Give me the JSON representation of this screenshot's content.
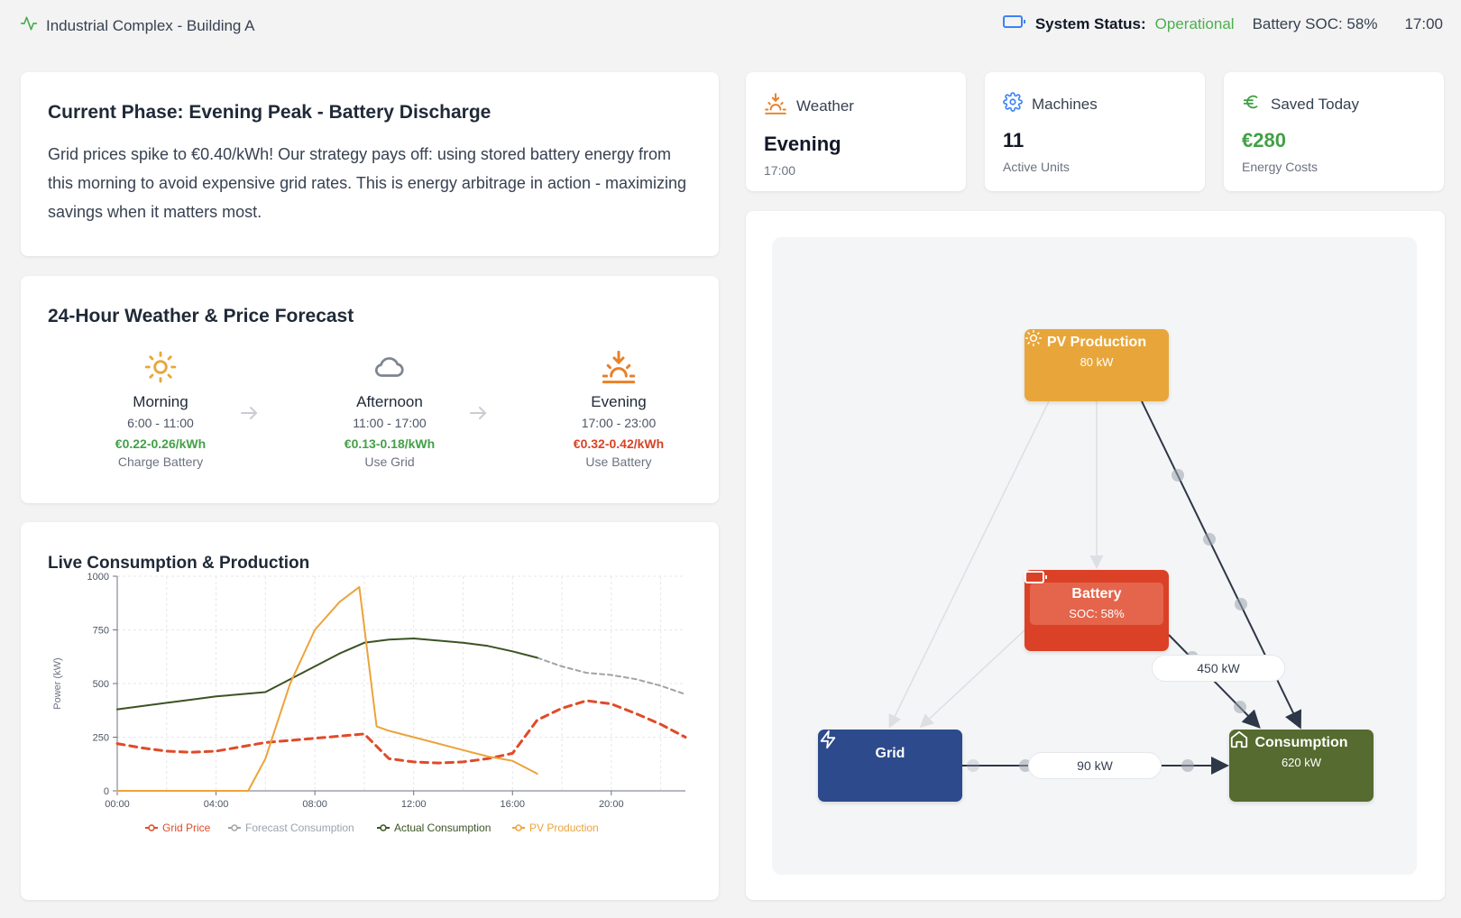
{
  "header": {
    "site_name": "Industrial Complex - Building A",
    "status_label": "System Status:",
    "status_value": "Operational",
    "battery_soc": "Battery SOC: 58%",
    "time": "17:00",
    "colors": {
      "status_ok": "#4caf50",
      "battery_icon": "#3b82f6",
      "activity_icon": "#4caf50"
    }
  },
  "phase": {
    "title": "Current Phase: Evening Peak - Battery Discharge",
    "description": "Grid prices spike to €0.40/kWh! Our strategy pays off: using stored battery energy from this morning to avoid expensive grid rates. This is energy arbitrage in action - maximizing savings when it matters most."
  },
  "forecast": {
    "title": "24-Hour Weather & Price Forecast",
    "periods": [
      {
        "icon": "sun-icon",
        "name": "Morning",
        "time": "6:00 - 11:00",
        "price": "€0.22-0.26/kWh",
        "price_color": "#43a047",
        "action": "Charge Battery"
      },
      {
        "icon": "cloud-icon",
        "name": "Afternoon",
        "time": "11:00 - 17:00",
        "price": "€0.13-0.18/kWh",
        "price_color": "#43a047",
        "action": "Use Grid"
      },
      {
        "icon": "sunset-icon",
        "name": "Evening",
        "time": "17:00 - 23:00",
        "price": "€0.32-0.42/kWh",
        "price_color": "#d84326",
        "action": "Use Battery"
      }
    ]
  },
  "stats": {
    "weather": {
      "label": "Weather",
      "value": "Evening",
      "sub": "17:00"
    },
    "machines": {
      "label": "Machines",
      "value": "11",
      "sub": "Active Units"
    },
    "saved": {
      "label": "Saved Today",
      "value": "€280",
      "sub": "Energy Costs",
      "value_color": "#43a047"
    }
  },
  "flow": {
    "pv": {
      "title": "PV Production",
      "value": "80 kW"
    },
    "battery": {
      "title": "Battery",
      "value": "SOC: 58%"
    },
    "grid": {
      "title": "Grid"
    },
    "consumption": {
      "title": "Consumption",
      "value": "620 kW"
    },
    "battery_to_consumption": "450 kW",
    "grid_to_consumption": "90 kW"
  },
  "chart_data": {
    "type": "line",
    "title": "Live Consumption & Production",
    "xlabel": "",
    "ylabel": "Power (kW)",
    "ylim": [
      0,
      1000
    ],
    "xlim": [
      0,
      23
    ],
    "x_ticks": [
      "00:00",
      "04:00",
      "08:00",
      "12:00",
      "16:00",
      "20:00"
    ],
    "y_ticks": [
      "0",
      "250",
      "500",
      "750",
      "1000"
    ],
    "series": [
      {
        "name": "Grid Price",
        "color": "#e04a2a",
        "style": "dashed",
        "x": [
          0,
          1,
          2,
          3,
          4,
          5,
          6,
          7,
          8,
          9,
          10,
          11,
          12,
          13,
          14,
          15,
          16,
          17,
          18,
          19,
          20,
          21,
          22,
          23
        ],
        "y": [
          220,
          200,
          185,
          180,
          185,
          205,
          225,
          235,
          245,
          255,
          265,
          150,
          135,
          130,
          135,
          150,
          175,
          330,
          385,
          420,
          405,
          360,
          310,
          250
        ]
      },
      {
        "name": "Forecast Consumption",
        "color": "#a3a3a3",
        "style": "dashed",
        "x": [
          17,
          18,
          19,
          20,
          21,
          22,
          23
        ],
        "y": [
          620,
          580,
          550,
          540,
          520,
          490,
          450
        ]
      },
      {
        "name": "Actual Consumption",
        "color": "#3b5323",
        "style": "solid",
        "x": [
          0,
          1,
          2,
          3,
          4,
          5,
          6,
          7,
          8,
          9,
          10,
          11,
          12,
          13,
          14,
          15,
          16,
          17
        ],
        "y": [
          380,
          395,
          410,
          425,
          440,
          450,
          460,
          520,
          580,
          640,
          690,
          705,
          710,
          700,
          690,
          675,
          650,
          620
        ]
      },
      {
        "name": "PV Production",
        "color": "#eca33a",
        "style": "solid",
        "x": [
          0,
          1,
          2,
          3,
          4,
          5,
          5.3,
          6,
          7,
          8,
          9,
          9.8,
          10.5,
          11,
          12,
          13,
          14,
          15,
          16,
          17
        ],
        "y": [
          0,
          0,
          0,
          0,
          0,
          0,
          0,
          150,
          500,
          750,
          880,
          950,
          300,
          280,
          250,
          220,
          190,
          160,
          140,
          80
        ]
      }
    ]
  }
}
